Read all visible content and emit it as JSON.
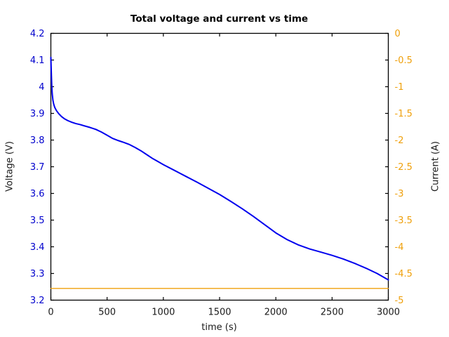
{
  "chart_data": {
    "type": "line",
    "title": "Total voltage and current vs time",
    "xlabel": "time (s)",
    "grid": false,
    "legend": "none",
    "x_axis": {
      "lim": [
        0,
        3000
      ],
      "ticks": [
        0,
        500,
        1000,
        1500,
        2000,
        2500,
        3000
      ],
      "tick_labels": [
        "0",
        "500",
        "1000",
        "1500",
        "2000",
        "2500",
        "3000"
      ],
      "color": "#1a1a1a"
    },
    "left_axis": {
      "label": "Voltage (V)",
      "lim": [
        3.2,
        4.2
      ],
      "ticks": [
        4.2,
        4.1,
        4.0,
        3.9,
        3.8,
        3.7,
        3.6,
        3.5,
        3.4,
        3.3,
        3.2
      ],
      "tick_labels": [
        "4.2",
        "4.1",
        "4",
        "3.9",
        "3.8",
        "3.7",
        "3.6",
        "3.5",
        "3.4",
        "3.3",
        "3.2"
      ],
      "color": "#0000cd"
    },
    "right_axis": {
      "label": "Current (A)",
      "lim": [
        -5,
        0
      ],
      "ticks": [
        0,
        -0.5,
        -1.0,
        -1.5,
        -2.0,
        -2.5,
        -3.0,
        -3.5,
        -4.0,
        -4.5,
        -5.0
      ],
      "tick_labels": [
        "0",
        "-0.5",
        "-1",
        "-1.5",
        "-2",
        "-2.5",
        "-3",
        "-3.5",
        "-4",
        "-4.5",
        "-5"
      ],
      "color": "#efa00b"
    },
    "series": [
      {
        "name": "total voltage",
        "axis": "left",
        "color": "#0000ee",
        "line_width": 2,
        "points": [
          [
            0,
            4.11
          ],
          [
            2,
            4.08
          ],
          [
            5,
            4.04
          ],
          [
            8,
            4.005
          ],
          [
            12,
            3.975
          ],
          [
            18,
            3.95
          ],
          [
            25,
            3.935
          ],
          [
            35,
            3.922
          ],
          [
            50,
            3.91
          ],
          [
            70,
            3.899
          ],
          [
            95,
            3.888
          ],
          [
            120,
            3.88
          ],
          [
            150,
            3.873
          ],
          [
            185,
            3.867
          ],
          [
            220,
            3.862
          ],
          [
            260,
            3.858
          ],
          [
            300,
            3.853
          ],
          [
            350,
            3.847
          ],
          [
            400,
            3.84
          ],
          [
            450,
            3.83
          ],
          [
            500,
            3.818
          ],
          [
            550,
            3.806
          ],
          [
            600,
            3.798
          ],
          [
            650,
            3.791
          ],
          [
            700,
            3.783
          ],
          [
            750,
            3.772
          ],
          [
            800,
            3.76
          ],
          [
            850,
            3.746
          ],
          [
            900,
            3.732
          ],
          [
            950,
            3.72
          ],
          [
            1000,
            3.708
          ],
          [
            1100,
            3.686
          ],
          [
            1200,
            3.664
          ],
          [
            1300,
            3.642
          ],
          [
            1400,
            3.619
          ],
          [
            1500,
            3.596
          ],
          [
            1600,
            3.57
          ],
          [
            1700,
            3.543
          ],
          [
            1800,
            3.514
          ],
          [
            1900,
            3.483
          ],
          [
            2000,
            3.452
          ],
          [
            2100,
            3.427
          ],
          [
            2200,
            3.407
          ],
          [
            2300,
            3.392
          ],
          [
            2400,
            3.38
          ],
          [
            2500,
            3.368
          ],
          [
            2600,
            3.354
          ],
          [
            2700,
            3.338
          ],
          [
            2800,
            3.32
          ],
          [
            2900,
            3.3
          ],
          [
            3000,
            3.276
          ]
        ]
      },
      {
        "name": "current",
        "axis": "right",
        "color": "#efa00b",
        "line_width": 1.4,
        "points": [
          [
            0,
            -4.78
          ],
          [
            3000,
            -4.78
          ]
        ]
      }
    ]
  }
}
